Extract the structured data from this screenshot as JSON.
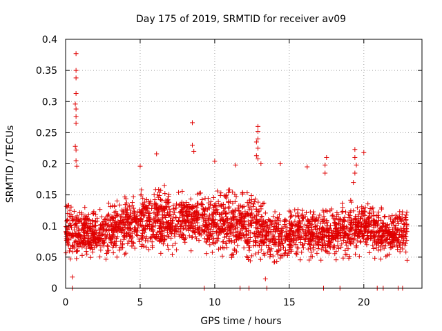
{
  "chart_data": {
    "type": "scatter",
    "title": "Day 175 of 2019, SRMTID for receiver av09",
    "xlabel": "GPS time / hours",
    "ylabel": "SRMTID / TECUs",
    "xlim": [
      0,
      23.9
    ],
    "ylim": [
      0,
      0.4
    ],
    "x_ticks": [
      0,
      5,
      10,
      15,
      20
    ],
    "x_tick_labels": [
      "0",
      "5",
      "10",
      "15",
      "20"
    ],
    "y_ticks": [
      0,
      0.05,
      0.1,
      0.15,
      0.2,
      0.25,
      0.3,
      0.35,
      0.4
    ],
    "y_tick_labels": [
      "0",
      "0.05",
      "0.1",
      "0.15",
      "0.2",
      "0.25",
      "0.3",
      "0.35",
      "0.4"
    ],
    "grid": true,
    "marker": "plus",
    "color": "#e00000",
    "notes": "Several thousand points; baseline cloud mostly 0.03-0.15 TECU across the day. Listed points are representative readings of the outliers/peaks and baseline; zero-valued points appear at the hours listed in zero_x.",
    "outliers": [
      {
        "x": 0.7,
        "y": 0.377
      },
      {
        "x": 0.7,
        "y": 0.35
      },
      {
        "x": 0.7,
        "y": 0.338
      },
      {
        "x": 0.7,
        "y": 0.313
      },
      {
        "x": 0.65,
        "y": 0.296
      },
      {
        "x": 0.7,
        "y": 0.288
      },
      {
        "x": 0.7,
        "y": 0.276
      },
      {
        "x": 0.7,
        "y": 0.265
      },
      {
        "x": 0.65,
        "y": 0.228
      },
      {
        "x": 0.7,
        "y": 0.222
      },
      {
        "x": 0.7,
        "y": 0.205
      },
      {
        "x": 0.75,
        "y": 0.196
      },
      {
        "x": 0.45,
        "y": 0.018
      },
      {
        "x": 6.1,
        "y": 0.216
      },
      {
        "x": 8.5,
        "y": 0.266
      },
      {
        "x": 8.5,
        "y": 0.23
      },
      {
        "x": 8.6,
        "y": 0.22
      },
      {
        "x": 5.0,
        "y": 0.196
      },
      {
        "x": 10.0,
        "y": 0.204
      },
      {
        "x": 12.9,
        "y": 0.26
      },
      {
        "x": 12.9,
        "y": 0.252
      },
      {
        "x": 12.9,
        "y": 0.24
      },
      {
        "x": 12.8,
        "y": 0.235
      },
      {
        "x": 12.9,
        "y": 0.225
      },
      {
        "x": 12.8,
        "y": 0.213
      },
      {
        "x": 12.9,
        "y": 0.208
      },
      {
        "x": 13.1,
        "y": 0.2
      },
      {
        "x": 13.4,
        "y": 0.015
      },
      {
        "x": 14.4,
        "y": 0.2
      },
      {
        "x": 17.4,
        "y": 0.198
      },
      {
        "x": 17.4,
        "y": 0.185
      },
      {
        "x": 17.5,
        "y": 0.21
      },
      {
        "x": 19.4,
        "y": 0.223
      },
      {
        "x": 19.4,
        "y": 0.21
      },
      {
        "x": 19.5,
        "y": 0.198
      },
      {
        "x": 19.4,
        "y": 0.185
      },
      {
        "x": 19.3,
        "y": 0.17
      },
      {
        "x": 20.0,
        "y": 0.218
      },
      {
        "x": 16.2,
        "y": 0.195
      },
      {
        "x": 11.4,
        "y": 0.198
      },
      {
        "x": 22.9,
        "y": 0.045
      }
    ],
    "zero_x": [
      0.45,
      9.3,
      11.7,
      12.3,
      13.5,
      17.3,
      18.4,
      20.9,
      21.3,
      22.3,
      22.6
    ],
    "baseline_profile": [
      {
        "x": 0,
        "low": 0.04,
        "high": 0.15
      },
      {
        "x": 2,
        "low": 0.035,
        "high": 0.13
      },
      {
        "x": 4,
        "low": 0.045,
        "high": 0.16
      },
      {
        "x": 6,
        "low": 0.05,
        "high": 0.17
      },
      {
        "x": 8,
        "low": 0.05,
        "high": 0.17
      },
      {
        "x": 10,
        "low": 0.045,
        "high": 0.17
      },
      {
        "x": 12,
        "low": 0.035,
        "high": 0.17
      },
      {
        "x": 14,
        "low": 0.03,
        "high": 0.14
      },
      {
        "x": 16,
        "low": 0.04,
        "high": 0.14
      },
      {
        "x": 18,
        "low": 0.04,
        "high": 0.14
      },
      {
        "x": 20,
        "low": 0.045,
        "high": 0.15
      },
      {
        "x": 22,
        "low": 0.04,
        "high": 0.13
      },
      {
        "x": 22.9,
        "low": 0.045,
        "high": 0.15
      }
    ]
  }
}
